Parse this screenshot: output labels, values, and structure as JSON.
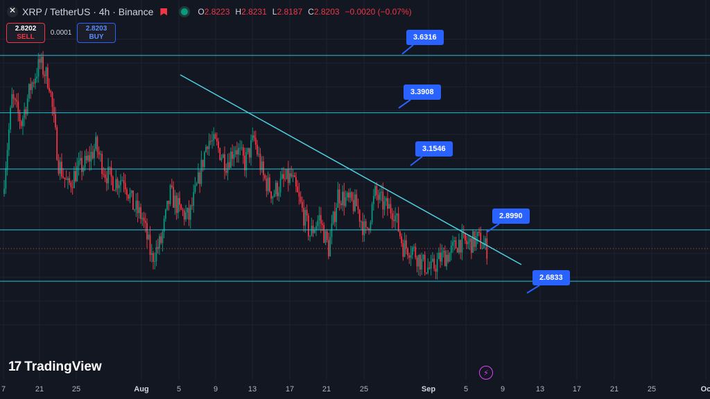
{
  "header": {
    "title": "XRP / TetherUS · 4h · Binance",
    "ohlc": {
      "o_label": "O",
      "o": "2.8223",
      "h_label": "H",
      "h": "2.8231",
      "l_label": "L",
      "l": "2.8187",
      "c_label": "C",
      "c": "2.8203",
      "change": "−0.0020 (−0.07%)"
    }
  },
  "trade": {
    "sell_price": "2.8202",
    "sell_label": "SELL",
    "spread": "0.0001",
    "buy_price": "2.8203",
    "buy_label": "BUY"
  },
  "logo_text": "TradingView",
  "colors": {
    "background": "#131722",
    "level_line": "#26c6da",
    "trendline": "#4dd0e1",
    "bullish": "#089981",
    "bearish": "#f23645",
    "callout": "#2962ff"
  },
  "chart_data": {
    "type": "candlestick",
    "symbol": "XRP/USDT",
    "timeframe": "4h",
    "exchange": "Binance",
    "x_ticks": [
      "7",
      "21",
      "25",
      "Aug",
      "5",
      "9",
      "13",
      "17",
      "21",
      "25",
      "Sep",
      "5",
      "9",
      "13",
      "17",
      "21",
      "25",
      "Oc"
    ],
    "y_range": [
      2.45,
      3.75
    ],
    "horizontal_levels": [
      {
        "price": 3.6316,
        "label": "3.6316"
      },
      {
        "price": 3.3908,
        "label": "3.3908"
      },
      {
        "price": 3.1546,
        "label": "3.1546"
      },
      {
        "price": 2.899,
        "label": "2.8990"
      },
      {
        "price": 2.6833,
        "label": "2.6833"
      }
    ],
    "current_price": 2.8203,
    "trendline": [
      {
        "date": "Aug 5",
        "price": 3.51
      },
      {
        "date": "Sep 10",
        "price": 2.77
      }
    ],
    "price_path": [
      [
        "Jul 17",
        3.05
      ],
      [
        "Jul 18",
        3.45
      ],
      [
        "Jul 19",
        3.35
      ],
      [
        "Jul 20",
        3.5
      ],
      [
        "Jul 21",
        3.6
      ],
      [
        "Jul 22",
        3.52
      ],
      [
        "Jul 23",
        3.18
      ],
      [
        "Jul 24",
        3.08
      ],
      [
        "Jul 25",
        3.15
      ],
      [
        "Jul 26",
        3.18
      ],
      [
        "Jul 27",
        3.25
      ],
      [
        "Jul 28",
        3.14
      ],
      [
        "Jul 29",
        3.1
      ],
      [
        "Jul 30",
        3.12
      ],
      [
        "Jul 31",
        3.0
      ],
      [
        "Aug 1",
        2.95
      ],
      [
        "Aug 2",
        2.78
      ],
      [
        "Aug 3",
        2.85
      ],
      [
        "Aug 4",
        3.05
      ],
      [
        "Aug 5",
        2.98
      ],
      [
        "Aug 6",
        2.95
      ],
      [
        "Aug 7",
        3.1
      ],
      [
        "Aug 8",
        3.28
      ],
      [
        "Aug 9",
        3.25
      ],
      [
        "Aug 10",
        3.18
      ],
      [
        "Aug 11",
        3.25
      ],
      [
        "Aug 12",
        3.18
      ],
      [
        "Aug 13",
        3.28
      ],
      [
        "Aug 14",
        3.12
      ],
      [
        "Aug 15",
        3.05
      ],
      [
        "Aug 16",
        3.1
      ],
      [
        "Aug 17",
        3.12
      ],
      [
        "Aug 18",
        3.0
      ],
      [
        "Aug 19",
        2.88
      ],
      [
        "Aug 20",
        2.95
      ],
      [
        "Aug 21",
        2.82
      ],
      [
        "Aug 22",
        3.05
      ],
      [
        "Aug 23",
        3.02
      ],
      [
        "Aug 24",
        3.0
      ],
      [
        "Aug 25",
        2.88
      ],
      [
        "Aug 26",
        3.05
      ],
      [
        "Aug 27",
        3.0
      ],
      [
        "Aug 28",
        2.98
      ],
      [
        "Aug 29",
        2.83
      ],
      [
        "Aug 30",
        2.82
      ],
      [
        "Aug 31",
        2.76
      ],
      [
        "Sep 1",
        2.73
      ],
      [
        "Sep 2",
        2.78
      ],
      [
        "Sep 3",
        2.8
      ],
      [
        "Sep 4",
        2.85
      ],
      [
        "Sep 5",
        2.84
      ],
      [
        "Sep 6",
        2.86
      ],
      [
        "Sep 7",
        2.82
      ]
    ]
  }
}
